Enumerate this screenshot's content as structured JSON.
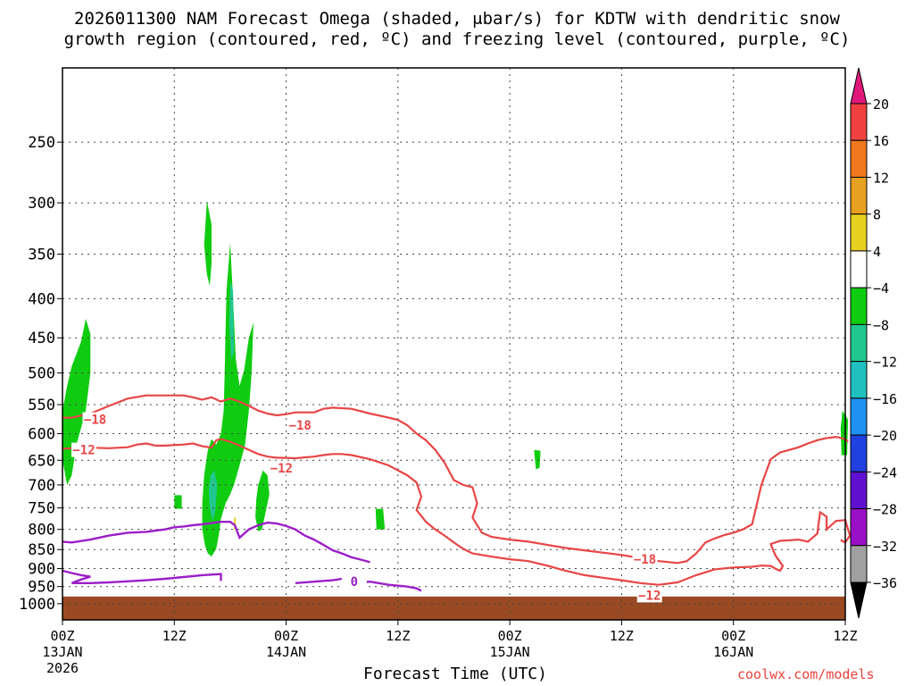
{
  "title_line1": "2026011300 NAM Forecast Omega (shaded, μbar/s) for KDTW with dendritic snow",
  "title_line2": "growth region (contoured, red, ºC) and freezing level (contoured, purple, ºC)",
  "credit": "coolwx.com/models",
  "chart_data": {
    "type": "contour",
    "xlabel": "Forecast Time (UTC)",
    "x_range_hours": [
      0,
      84
    ],
    "x_ticks": [
      {
        "hour": 0,
        "label": "00Z",
        "sub": "13JAN",
        "sub2": "2026"
      },
      {
        "hour": 12,
        "label": "12Z",
        "sub": "",
        "sub2": ""
      },
      {
        "hour": 24,
        "label": "00Z",
        "sub": "14JAN",
        "sub2": ""
      },
      {
        "hour": 36,
        "label": "12Z",
        "sub": "",
        "sub2": ""
      },
      {
        "hour": 48,
        "label": "00Z",
        "sub": "15JAN",
        "sub2": ""
      },
      {
        "hour": 60,
        "label": "12Z",
        "sub": "",
        "sub2": ""
      },
      {
        "hour": 72,
        "label": "00Z",
        "sub": "16JAN",
        "sub2": ""
      },
      {
        "hour": 84,
        "label": "12Z",
        "sub": "",
        "sub2": ""
      }
    ],
    "y_scale": "log-pressure",
    "y_range_hpa": [
      1050,
      200
    ],
    "y_ticks": [
      250,
      300,
      350,
      400,
      450,
      500,
      550,
      600,
      650,
      700,
      750,
      800,
      850,
      900,
      950,
      1000
    ],
    "ground_color": "#9a4a22",
    "ground_level_hpa": 1000,
    "colorbar": {
      "labels": [
        "20",
        "16",
        "12",
        "8",
        "4",
        "−4",
        "−8",
        "−12",
        "−16",
        "−20",
        "−24",
        "−28",
        "−32",
        "−36"
      ],
      "top_cap_color": "#e0187a",
      "bottom_cap_color": "#000000",
      "bands": [
        "#f04040",
        "#f07820",
        "#e8a020",
        "#e8d020",
        "#ffffff",
        "#10cc10",
        "#20c890",
        "#20c0c0",
        "#2090f0",
        "#2040e0",
        "#6010d0",
        "#9a10c8",
        "#a0a0a0"
      ]
    },
    "contours": [
      {
        "color": "#e84545",
        "label": "−18",
        "points": [
          [
            0,
            572
          ],
          [
            1,
            572
          ],
          [
            3,
            565
          ],
          [
            5,
            552
          ],
          [
            7,
            540
          ],
          [
            9,
            535
          ],
          [
            11,
            535
          ],
          [
            12,
            535
          ],
          [
            13,
            535
          ],
          [
            14,
            538
          ],
          [
            15,
            542
          ],
          [
            16,
            538
          ],
          [
            17,
            545
          ],
          [
            18,
            540
          ],
          [
            19,
            545
          ],
          [
            20,
            552
          ],
          [
            21,
            560
          ],
          [
            22,
            565
          ],
          [
            23,
            568
          ],
          [
            24,
            566
          ],
          [
            25,
            563
          ],
          [
            27,
            563
          ],
          [
            28,
            557
          ],
          [
            29,
            555
          ],
          [
            31,
            557
          ],
          [
            33,
            565
          ],
          [
            35,
            572
          ],
          [
            36,
            576
          ],
          [
            37,
            585
          ],
          [
            38,
            600
          ],
          [
            39,
            612
          ],
          [
            40,
            630
          ],
          [
            41,
            655
          ],
          [
            42,
            690
          ],
          [
            43,
            700
          ],
          [
            44,
            705
          ],
          [
            44.5,
            740
          ],
          [
            44,
            772
          ],
          [
            45,
            808
          ],
          [
            46,
            818
          ],
          [
            48,
            825
          ],
          [
            50,
            830
          ],
          [
            52,
            838
          ],
          [
            54,
            846
          ],
          [
            56,
            852
          ],
          [
            58,
            858
          ],
          [
            60,
            864
          ],
          [
            62,
            872
          ],
          [
            64,
            880
          ],
          [
            66,
            885
          ],
          [
            67,
            880
          ],
          [
            68,
            860
          ],
          [
            69,
            832
          ],
          [
            70,
            822
          ],
          [
            71,
            814
          ],
          [
            72,
            808
          ],
          [
            73,
            800
          ],
          [
            74,
            788
          ],
          [
            75,
            700
          ],
          [
            76,
            648
          ],
          [
            77,
            635
          ],
          [
            79,
            625
          ],
          [
            80,
            618
          ],
          [
            81,
            612
          ],
          [
            82,
            608
          ],
          [
            83,
            606
          ],
          [
            84,
            610
          ],
          [
            84.3,
            615
          ]
        ]
      },
      {
        "color": "#e84545",
        "label": "−12",
        "points": [
          [
            0,
            628
          ],
          [
            1,
            627
          ],
          [
            3,
            626
          ],
          [
            5,
            627
          ],
          [
            7,
            625
          ],
          [
            8,
            620
          ],
          [
            9,
            618
          ],
          [
            10,
            622
          ],
          [
            11,
            622
          ],
          [
            13,
            620
          ],
          [
            14,
            618
          ],
          [
            15,
            623
          ],
          [
            16,
            626
          ],
          [
            16.5,
            612
          ],
          [
            17,
            610
          ],
          [
            18,
            615
          ],
          [
            19,
            622
          ],
          [
            20,
            630
          ],
          [
            21,
            638
          ],
          [
            22,
            643
          ],
          [
            23,
            645
          ],
          [
            25,
            646
          ],
          [
            27,
            643
          ],
          [
            28,
            640
          ],
          [
            29,
            638
          ],
          [
            30,
            638
          ],
          [
            31,
            640
          ],
          [
            33,
            648
          ],
          [
            35,
            660
          ],
          [
            36,
            670
          ],
          [
            37,
            680
          ],
          [
            38,
            695
          ],
          [
            38.5,
            725
          ],
          [
            38,
            755
          ],
          [
            39,
            782
          ],
          [
            40,
            800
          ],
          [
            41,
            815
          ],
          [
            42,
            832
          ],
          [
            43,
            848
          ],
          [
            44,
            860
          ],
          [
            46,
            868
          ],
          [
            48,
            875
          ],
          [
            50,
            880
          ],
          [
            52,
            892
          ],
          [
            54,
            906
          ],
          [
            56,
            918
          ],
          [
            58,
            925
          ],
          [
            60,
            932
          ],
          [
            62,
            940
          ],
          [
            64,
            945
          ],
          [
            66,
            938
          ],
          [
            68,
            918
          ],
          [
            70,
            902
          ],
          [
            72,
            897
          ],
          [
            74,
            895
          ],
          [
            75,
            892
          ],
          [
            76,
            893
          ],
          [
            76.5,
            900
          ],
          [
            77,
            906
          ],
          [
            77.3,
            893
          ],
          [
            76.5,
            865
          ],
          [
            76,
            836
          ],
          [
            77,
            828
          ],
          [
            79,
            825
          ],
          [
            80,
            830
          ],
          [
            81,
            810
          ],
          [
            81.3,
            760
          ],
          [
            82,
            770
          ],
          [
            82,
            800
          ],
          [
            83,
            780
          ],
          [
            84,
            778
          ],
          [
            84.5,
            815
          ],
          [
            84,
            832
          ],
          [
            83.5,
            826
          ]
        ]
      }
    ],
    "freezing": [
      {
        "color": "#9b1fc8",
        "points": [
          [
            0,
            830
          ],
          [
            1,
            832
          ],
          [
            3,
            825
          ],
          [
            5,
            815
          ],
          [
            7,
            808
          ],
          [
            9,
            806
          ],
          [
            10,
            803
          ],
          [
            11,
            800
          ],
          [
            12,
            795
          ],
          [
            13,
            793
          ],
          [
            14,
            790
          ],
          [
            15,
            788
          ],
          [
            16,
            785
          ],
          [
            17,
            782
          ],
          [
            18,
            782
          ],
          [
            18.5,
            790
          ],
          [
            19,
            820
          ],
          [
            19.5,
            810
          ],
          [
            20,
            800
          ],
          [
            21,
            790
          ],
          [
            22,
            784
          ],
          [
            23,
            786
          ],
          [
            24,
            792
          ],
          [
            25,
            800
          ],
          [
            26,
            815
          ],
          [
            27,
            825
          ],
          [
            28,
            838
          ],
          [
            29,
            852
          ],
          [
            30,
            860
          ],
          [
            31,
            870
          ],
          [
            32,
            876
          ],
          [
            33,
            883
          ]
        ]
      },
      {
        "color": "#9b1fc8",
        "points": [
          [
            0,
            906
          ],
          [
            1,
            912
          ],
          [
            2,
            918
          ],
          [
            3,
            922
          ],
          [
            2,
            930
          ],
          [
            1,
            940
          ],
          [
            3,
            940
          ],
          [
            5,
            938
          ],
          [
            7,
            935
          ],
          [
            9,
            932
          ],
          [
            11,
            928
          ],
          [
            13,
            923
          ],
          [
            15,
            918
          ],
          [
            17,
            915
          ],
          [
            17,
            934
          ]
        ]
      },
      {
        "color": "#9b1fc8",
        "label": "0",
        "points": [
          [
            25,
            940
          ],
          [
            27,
            936
          ],
          [
            29,
            932
          ],
          [
            30,
            928
          ],
          [
            31,
            935
          ],
          [
            32,
            938
          ],
          [
            33,
            936
          ],
          [
            35,
            945
          ],
          [
            37,
            950
          ],
          [
            38,
            955
          ],
          [
            38.5,
            962
          ]
        ]
      }
    ],
    "omega_regions": [
      {
        "color": "#10cc10",
        "points": [
          [
            0,
            560
          ],
          [
            0.5,
            520
          ],
          [
            1,
            490
          ],
          [
            2,
            455
          ],
          [
            2.5,
            425
          ],
          [
            3,
            445
          ],
          [
            3,
            500
          ],
          [
            2.5,
            560
          ],
          [
            1.5,
            620
          ],
          [
            1,
            680
          ],
          [
            0.5,
            700
          ],
          [
            0,
            650
          ]
        ]
      },
      {
        "color": "#10cc10",
        "points": [
          [
            15.5,
            298
          ],
          [
            16,
            320
          ],
          [
            16,
            360
          ],
          [
            15.8,
            385
          ],
          [
            15.5,
            372
          ],
          [
            15.2,
            340
          ]
        ]
      },
      {
        "color": "#10cc10",
        "points": [
          [
            18,
            338
          ],
          [
            18.3,
            400
          ],
          [
            18.6,
            480
          ],
          [
            19,
            520
          ],
          [
            19.5,
            495
          ],
          [
            20,
            450
          ],
          [
            20.5,
            430
          ],
          [
            20.3,
            500
          ],
          [
            20,
            560
          ],
          [
            19.6,
            620
          ],
          [
            19.3,
            640
          ],
          [
            19,
            660
          ],
          [
            18.7,
            680
          ],
          [
            18.4,
            700
          ],
          [
            18,
            720
          ],
          [
            17.5,
            740
          ],
          [
            17,
            775
          ],
          [
            16.8,
            810
          ],
          [
            16.5,
            848
          ],
          [
            16,
            868
          ],
          [
            15.6,
            860
          ],
          [
            15.3,
            840
          ],
          [
            15,
            800
          ],
          [
            15,
            740
          ],
          [
            15.2,
            680
          ],
          [
            15.6,
            630
          ],
          [
            16,
            610
          ],
          [
            16.5,
            620
          ],
          [
            17,
            600
          ],
          [
            17.3,
            560
          ],
          [
            17.4,
            500
          ],
          [
            17.5,
            440
          ],
          [
            17.6,
            390
          ]
        ]
      },
      {
        "color": "#20c890",
        "points": [
          [
            15.9,
            680
          ],
          [
            16.3,
            670
          ],
          [
            16.6,
            700
          ],
          [
            16.4,
            760
          ],
          [
            16.1,
            780
          ],
          [
            15.8,
            750
          ],
          [
            15.7,
            710
          ]
        ]
      },
      {
        "color": "#20c890",
        "points": [
          [
            18,
            380
          ],
          [
            18.3,
            390
          ],
          [
            18.4,
            470
          ],
          [
            18.1,
            480
          ],
          [
            17.9,
            430
          ]
        ]
      },
      {
        "color": "#10cc10",
        "points": [
          [
            21,
            700
          ],
          [
            21.5,
            670
          ],
          [
            22,
            680
          ],
          [
            22.2,
            720
          ],
          [
            21.8,
            760
          ],
          [
            21.4,
            800
          ],
          [
            21,
            805
          ],
          [
            20.7,
            770
          ],
          [
            20.8,
            730
          ]
        ]
      },
      {
        "color": "#10cc10",
        "points": [
          [
            12,
            722
          ],
          [
            12.8,
            722
          ],
          [
            12.8,
            752
          ],
          [
            12,
            752
          ]
        ]
      },
      {
        "color": "#10cc10",
        "points": [
          [
            33.6,
            752
          ],
          [
            34.4,
            752
          ],
          [
            34.6,
            800
          ],
          [
            33.7,
            800
          ]
        ]
      },
      {
        "color": "#10cc10",
        "points": [
          [
            50.6,
            630
          ],
          [
            51.3,
            632
          ],
          [
            51.2,
            665
          ],
          [
            50.8,
            668
          ]
        ]
      },
      {
        "color": "#10cc10",
        "points": [
          [
            83.7,
            560
          ],
          [
            84.3,
            575
          ],
          [
            84.2,
            640
          ],
          [
            83.6,
            640
          ],
          [
            83.5,
            590
          ]
        ]
      }
    ]
  }
}
